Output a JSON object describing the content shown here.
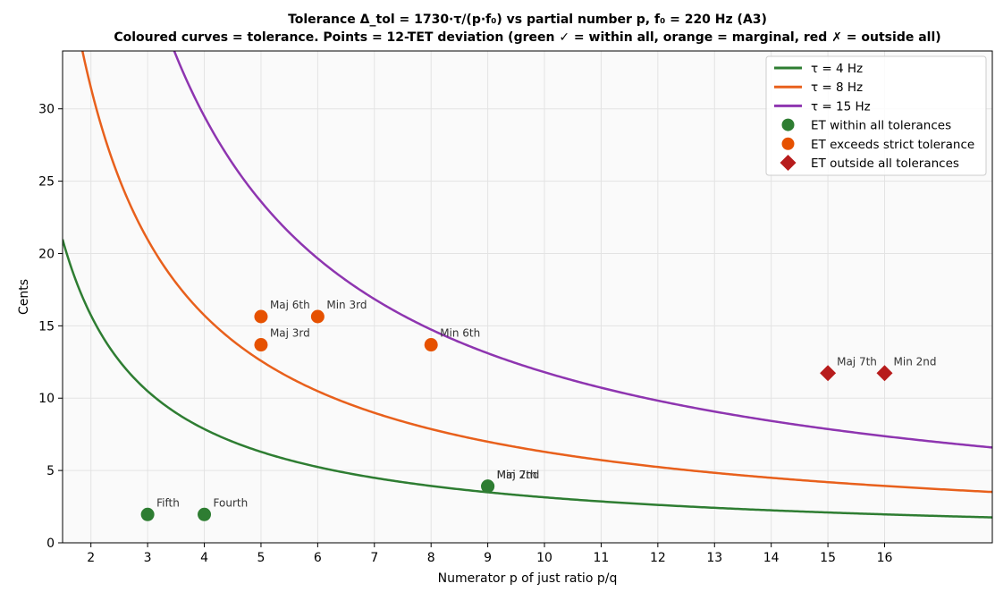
{
  "chart_data": {
    "type": "line",
    "title": "Tolerance Δ_tol = 1730·τ/(p·f₀) vs partial number p,  f₀ = 220 Hz (A3)",
    "subtitle": "Coloured curves = tolerance.  Points = 12-TET deviation (green ✓ = within all, orange = marginal, red ✗ = outside all)",
    "xlabel": "Numerator  p  of just ratio  p/q",
    "ylabel": "Cents",
    "xlim": [
      1.5,
      17.9
    ],
    "ylim": [
      0,
      34
    ],
    "x_ticks": [
      2,
      3,
      4,
      5,
      6,
      7,
      8,
      9,
      10,
      11,
      12,
      13,
      14,
      15,
      16
    ],
    "y_ticks": [
      0,
      5,
      10,
      15,
      20,
      25,
      30
    ],
    "grid": true,
    "legend_position": "top-right",
    "f0": 220,
    "series": [
      {
        "name": "τ = 4 Hz",
        "tau": 4,
        "color": "#2e7d32"
      },
      {
        "name": "τ = 8 Hz",
        "tau": 8,
        "color": "#e8601c"
      },
      {
        "name": "τ = 15 Hz",
        "tau": 15,
        "color": "#8e35b0"
      }
    ],
    "point_groups": [
      {
        "name": "ET within all tolerances",
        "color": "#2e7d32",
        "marker": "circle"
      },
      {
        "name": "ET exceeds strict tolerance",
        "color": "#e65100",
        "marker": "circle"
      },
      {
        "name": "ET outside all tolerances",
        "color": "#b71c1c",
        "marker": "diamond"
      }
    ],
    "points": [
      {
        "label": "Fifth",
        "x": 3,
        "y": 1.96,
        "group": 0
      },
      {
        "label": "Fourth",
        "x": 4,
        "y": 1.96,
        "group": 0
      },
      {
        "label": "Maj 2nd",
        "x": 9,
        "y": 3.91,
        "group": 0
      },
      {
        "label": "Min 7th",
        "x": 9,
        "y": 3.91,
        "group": 0
      },
      {
        "label": "Maj 6th",
        "x": 5,
        "y": 15.64,
        "group": 1
      },
      {
        "label": "Maj 3rd",
        "x": 5,
        "y": 13.69,
        "group": 1
      },
      {
        "label": "Min 3rd",
        "x": 6,
        "y": 15.64,
        "group": 1
      },
      {
        "label": "Min 6th",
        "x": 8,
        "y": 13.69,
        "group": 1
      },
      {
        "label": "Maj 7th",
        "x": 15,
        "y": 11.73,
        "group": 2
      },
      {
        "label": "Min 2nd",
        "x": 16,
        "y": 11.73,
        "group": 2
      }
    ]
  }
}
